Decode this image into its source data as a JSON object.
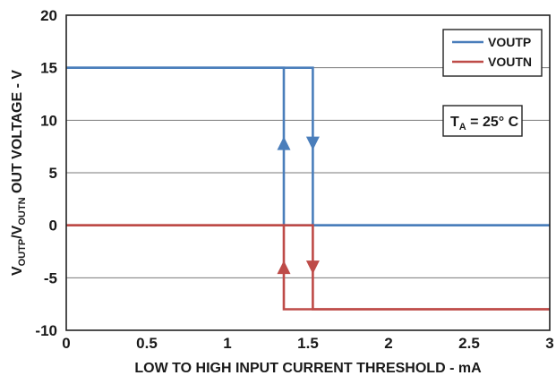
{
  "chart_data": {
    "type": "line",
    "xlabel": "LOW TO HIGH  INPUT CURRENT THRESHOLD - mA",
    "ylabel": {
      "prefix1": "V",
      "sub1": "OUTP",
      "mid": "/V",
      "sub2": "OUTN",
      "suffix": " OUT VOLTAGE - V"
    },
    "xlim": [
      0,
      3
    ],
    "ylim": [
      -10,
      20
    ],
    "xticks": [
      0,
      0.5,
      1,
      1.5,
      2,
      2.5,
      3
    ],
    "xtick_labels": [
      "0",
      "0.5",
      "1",
      "1.5",
      "2",
      "2.5",
      "3"
    ],
    "yticks": [
      -10,
      -5,
      0,
      5,
      10,
      15,
      20
    ],
    "ytick_labels": [
      "-10",
      "-5",
      "0",
      "5",
      "10",
      "15",
      "20"
    ],
    "grid": true,
    "legend_position": "top-right",
    "series": [
      {
        "name": "VOUTP",
        "color": "#4a7ebb",
        "rising": {
          "x": [
            0,
            1.35,
            1.35,
            1.36,
            3
          ],
          "y": [
            15,
            15,
            0,
            0,
            0
          ]
        },
        "falling": {
          "x": [
            0,
            1.53,
            1.53,
            1.55,
            3
          ],
          "y": [
            15,
            15,
            0,
            0,
            0
          ]
        },
        "arrows": [
          {
            "x": 1.35,
            "y": 7.8,
            "direction": "up"
          },
          {
            "x": 1.53,
            "y": 7.8,
            "direction": "down"
          }
        ]
      },
      {
        "name": "VOUTN",
        "color": "#be4b48",
        "rising": {
          "x": [
            0,
            1.35,
            1.35,
            1.36,
            3
          ],
          "y": [
            0,
            0,
            -8,
            -8,
            -8
          ]
        },
        "falling": {
          "x": [
            0,
            1.53,
            1.53,
            1.55,
            3
          ],
          "y": [
            0,
            0,
            -8,
            -8,
            -8
          ]
        },
        "arrows": [
          {
            "x": 1.35,
            "y": -4,
            "direction": "up"
          },
          {
            "x": 1.53,
            "y": -4,
            "direction": "down"
          }
        ]
      }
    ],
    "annotation": {
      "main": "T",
      "sub": "A",
      "rest": " = 25° C"
    }
  }
}
